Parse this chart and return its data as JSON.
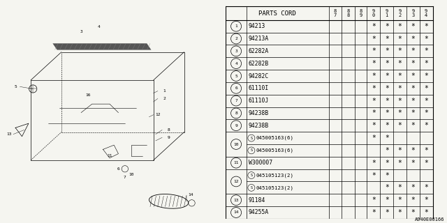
{
  "catalog_code": "A940E00166",
  "bg_color": "#f5f5f0",
  "year_cols": [
    "8\n7",
    "8\n8",
    "8\n9",
    "9\n0",
    "9\n1",
    "9\n2",
    "9\n3",
    "9\n4"
  ],
  "rows": [
    {
      "num": "1",
      "part": "94213",
      "double": false,
      "stars": [
        0,
        0,
        0,
        1,
        1,
        1,
        1,
        1
      ]
    },
    {
      "num": "2",
      "part": "94213A",
      "double": false,
      "stars": [
        0,
        0,
        0,
        1,
        1,
        1,
        1,
        1
      ]
    },
    {
      "num": "3",
      "part": "62282A",
      "double": false,
      "stars": [
        0,
        0,
        0,
        1,
        1,
        1,
        1,
        1
      ]
    },
    {
      "num": "4",
      "part": "62282B",
      "double": false,
      "stars": [
        0,
        0,
        0,
        1,
        1,
        1,
        1,
        1
      ]
    },
    {
      "num": "5",
      "part": "94282C",
      "double": false,
      "stars": [
        0,
        0,
        0,
        1,
        1,
        1,
        1,
        1
      ]
    },
    {
      "num": "6",
      "part": "61110I",
      "double": false,
      "stars": [
        0,
        0,
        0,
        1,
        1,
        1,
        1,
        1
      ]
    },
    {
      "num": "7",
      "part": "61110J",
      "double": false,
      "stars": [
        0,
        0,
        0,
        1,
        1,
        1,
        1,
        1
      ]
    },
    {
      "num": "8",
      "part": "94238B",
      "double": false,
      "stars": [
        0,
        0,
        0,
        1,
        1,
        1,
        1,
        1
      ]
    },
    {
      "num": "9",
      "part": "94238B",
      "double": false,
      "stars": [
        0,
        0,
        0,
        1,
        1,
        1,
        1,
        1
      ]
    },
    {
      "num": "10",
      "part": null,
      "double": true,
      "sub1": {
        "part": "045005163(6)",
        "stars": [
          0,
          0,
          0,
          1,
          1,
          0,
          0,
          0
        ]
      },
      "sub2": {
        "part": "045005163(6)",
        "stars": [
          0,
          0,
          0,
          0,
          1,
          1,
          1,
          1
        ]
      }
    },
    {
      "num": "11",
      "part": "W300007",
      "double": false,
      "stars": [
        0,
        0,
        0,
        1,
        1,
        1,
        1,
        1
      ]
    },
    {
      "num": "12",
      "part": null,
      "double": true,
      "sub1": {
        "part": "045105123(2)",
        "stars": [
          0,
          0,
          0,
          1,
          1,
          0,
          0,
          0
        ]
      },
      "sub2": {
        "part": "045105123(2)",
        "stars": [
          0,
          0,
          0,
          0,
          1,
          1,
          1,
          1
        ]
      }
    },
    {
      "num": "13",
      "part": "91184",
      "double": false,
      "stars": [
        0,
        0,
        0,
        1,
        1,
        1,
        1,
        1
      ]
    },
    {
      "num": "14",
      "part": "94255A",
      "double": false,
      "stars": [
        0,
        0,
        0,
        1,
        1,
        1,
        1,
        1
      ]
    }
  ],
  "line_color": "#000000",
  "font_size": 5.8,
  "header_font_size": 6.5
}
